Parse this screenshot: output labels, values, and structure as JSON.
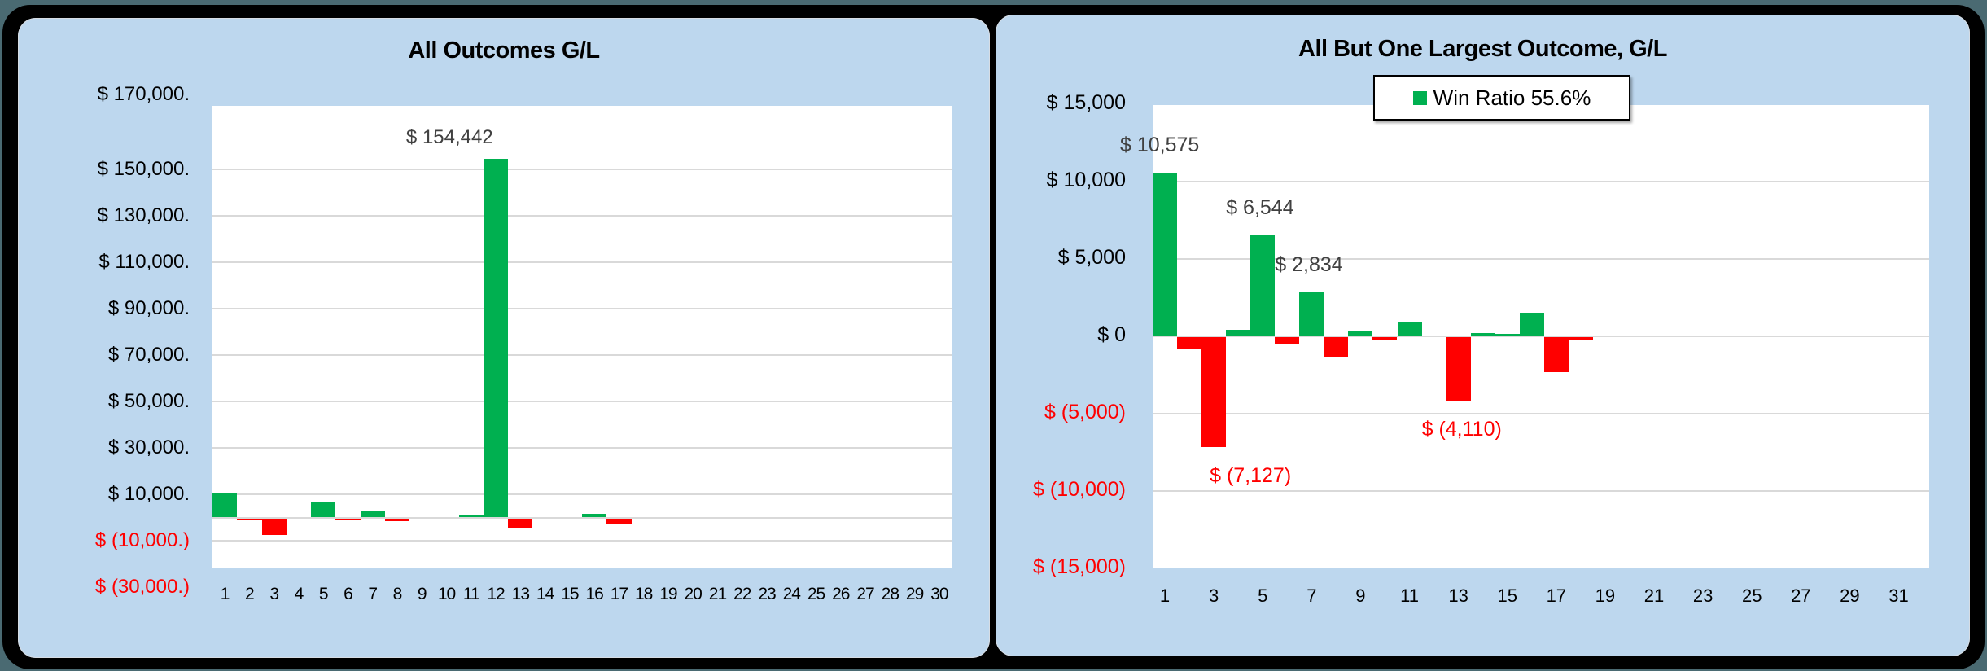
{
  "colors": {
    "gain": "#00b050",
    "loss": "#ff0000",
    "panel_bg": "#bdd7ee",
    "plot_bg": "#ffffff",
    "grid": "#d9d9d9",
    "data_label": "#404040"
  },
  "left": {
    "title": "All Outcomes G/L",
    "y_ticks": [
      {
        "label": "$ 170,000.",
        "neg": false
      },
      {
        "label": "$ 150,000.",
        "neg": false
      },
      {
        "label": "$ 130,000.",
        "neg": false
      },
      {
        "label": "$ 110,000.",
        "neg": false
      },
      {
        "label": "$ 90,000.",
        "neg": false
      },
      {
        "label": "$ 70,000.",
        "neg": false
      },
      {
        "label": "$ 50,000.",
        "neg": false
      },
      {
        "label": "$ 30,000.",
        "neg": false
      },
      {
        "label": "$ 10,000.",
        "neg": false
      },
      {
        "label": "$ (10,000.)",
        "neg": true
      },
      {
        "label": "$ (30,000.)",
        "neg": true
      }
    ],
    "x_ticks": [
      "1",
      "2",
      "3",
      "4",
      "5",
      "6",
      "7",
      "8",
      "9",
      "10",
      "11",
      "12",
      "13",
      "14",
      "15",
      "16",
      "17",
      "18",
      "19",
      "20",
      "21",
      "22",
      "23",
      "24",
      "25",
      "26",
      "27",
      "28",
      "29",
      "30"
    ],
    "data_labels": [
      {
        "index": 12,
        "text": "$ 154,442",
        "neg": false
      }
    ]
  },
  "right": {
    "title": "All But One Largest Outcome, G/L",
    "legend": "Win Ratio 55.6%",
    "y_ticks": [
      {
        "label": "$ 15,000",
        "neg": false
      },
      {
        "label": "$ 10,000",
        "neg": false
      },
      {
        "label": "$ 5,000",
        "neg": false
      },
      {
        "label": "$ 0",
        "neg": false
      },
      {
        "label": "$ (5,000)",
        "neg": true
      },
      {
        "label": "$ (10,000)",
        "neg": true
      },
      {
        "label": "$ (15,000)",
        "neg": true
      }
    ],
    "x_ticks": [
      "1",
      "3",
      "5",
      "7",
      "9",
      "11",
      "13",
      "15",
      "17",
      "19",
      "21",
      "23",
      "25",
      "27",
      "29",
      "31"
    ],
    "data_labels": [
      {
        "index": 1,
        "text": "$ 10,575",
        "neg": false
      },
      {
        "index": 3,
        "text": "$ (7,127)",
        "neg": true
      },
      {
        "index": 5,
        "text": "$ 6,544",
        "neg": false
      },
      {
        "index": 7,
        "text": "$ 2,834",
        "neg": false
      },
      {
        "index": 13,
        "text": "$ (4,110)",
        "neg": true
      }
    ]
  },
  "chart_data": [
    {
      "type": "bar",
      "title": "All Outcomes G/L",
      "xlabel": "",
      "ylabel": "",
      "ylim": [
        -30000,
        170000
      ],
      "grid": true,
      "legend": null,
      "categories": [
        "1",
        "2",
        "3",
        "4",
        "5",
        "6",
        "7",
        "8",
        "9",
        "10",
        "11",
        "12",
        "13",
        "14",
        "15",
        "16",
        "17",
        "18",
        "19",
        "20",
        "21",
        "22",
        "23",
        "24",
        "25",
        "26",
        "27",
        "28",
        "29",
        "30"
      ],
      "values": [
        10575,
        -785,
        -7127,
        0,
        6544,
        -483,
        2834,
        -1268,
        0,
        0,
        966,
        154442,
        -4110,
        0,
        0,
        1543,
        -2280,
        0,
        0,
        0,
        0,
        0,
        0,
        0,
        0,
        0,
        0,
        0,
        0,
        0
      ],
      "annotations": [
        {
          "x": "12",
          "text": "$ 154,442"
        }
      ]
    },
    {
      "type": "bar",
      "title": "All But One Largest Outcome, G/L",
      "xlabel": "",
      "ylabel": "",
      "ylim": [
        -15000,
        15000
      ],
      "grid": true,
      "legend": {
        "entries": [
          "Win Ratio 55.6%"
        ],
        "position": "top-center"
      },
      "categories": [
        "1",
        "2",
        "3",
        "4",
        "5",
        "6",
        "7",
        "8",
        "9",
        "10",
        "11",
        "12",
        "13",
        "14",
        "15",
        "16",
        "17",
        "18",
        "19",
        "20",
        "21",
        "22",
        "23",
        "24",
        "25",
        "26",
        "27",
        "28",
        "29",
        "30",
        "31"
      ],
      "values": [
        10575,
        -785,
        -7127,
        443,
        6544,
        -483,
        2834,
        -1268,
        302,
        -161,
        966,
        0,
        -4110,
        228,
        175,
        1543,
        -2280,
        -175,
        0,
        0,
        0,
        0,
        0,
        0,
        0,
        0,
        0,
        0,
        0,
        0,
        0
      ],
      "annotations": [
        {
          "x": "1",
          "text": "$ 10,575"
        },
        {
          "x": "3",
          "text": "$ (7,127)"
        },
        {
          "x": "5",
          "text": "$ 6,544"
        },
        {
          "x": "7",
          "text": "$ 2,834"
        },
        {
          "x": "13",
          "text": "$ (4,110)"
        }
      ]
    }
  ]
}
